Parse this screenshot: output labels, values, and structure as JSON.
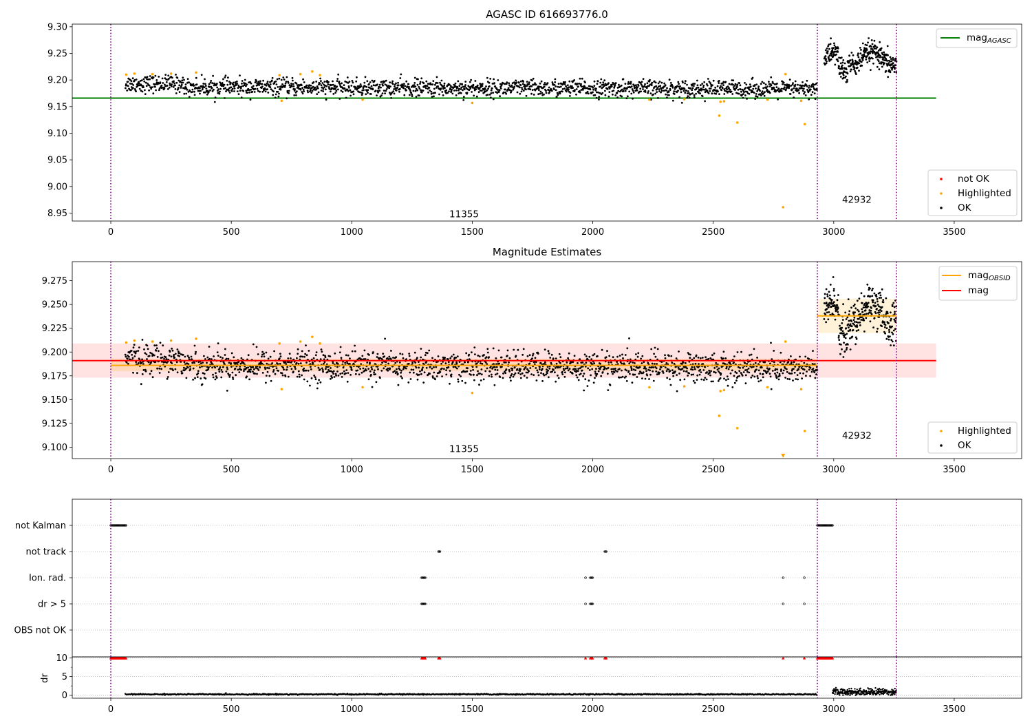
{
  "chart_data": [
    {
      "type": "scatter",
      "title": "AGASC ID 616693776.0",
      "xlim": [
        -160,
        3780
      ],
      "ylim": [
        8.935,
        9.305
      ],
      "x_ticks": [
        0,
        500,
        1000,
        1500,
        2000,
        2500,
        3000,
        3500
      ],
      "y_ticks": [
        8.95,
        9.0,
        9.05,
        9.1,
        9.15,
        9.2,
        9.25,
        9.3
      ],
      "y_tick_labels": [
        "8.95",
        "9.00",
        "9.05",
        "9.10",
        "9.15",
        "9.20",
        "9.25",
        "9.30"
      ],
      "grid": false,
      "vlines": [
        0,
        2932,
        3260
      ],
      "vline_color": "#800080",
      "obs_labels": [
        {
          "text": "11355",
          "x": 1466,
          "y": 8.942
        },
        {
          "text": "42932",
          "x": 3096,
          "y": 8.969
        }
      ],
      "hlines": [
        {
          "name": "mag",
          "sub": "AGASC",
          "y": 9.166,
          "x0": -160,
          "x1": 3425,
          "color": "#008000"
        }
      ],
      "segments": [
        {
          "x0": 60,
          "x1": 2932,
          "mean": 9.187,
          "spread": 0.008,
          "tilt": -0.004,
          "count": 1800,
          "status": "OK",
          "color": "#000000"
        },
        {
          "x0": 2960,
          "x1": 3260,
          "mean": 9.24,
          "spread": 0.011,
          "tilt": 0.0,
          "count": 340,
          "status": "OK",
          "color": "#000000"
        }
      ],
      "series": [
        {
          "name": "Highlighted",
          "color": "#FFA500",
          "points": [
            [
              64,
              9.21
            ],
            [
              98,
              9.212
            ],
            [
              173,
              9.211
            ],
            [
              250,
              9.212
            ],
            [
              354,
              9.214
            ],
            [
              700,
              9.209
            ],
            [
              709,
              9.161
            ],
            [
              787,
              9.211
            ],
            [
              836,
              9.216
            ],
            [
              868,
              9.209
            ],
            [
              1045,
              9.163
            ],
            [
              1500,
              9.157
            ],
            [
              2235,
              9.163
            ],
            [
              2380,
              9.164
            ],
            [
              2525,
              9.133
            ],
            [
              2530,
              9.159
            ],
            [
              2545,
              9.16
            ],
            [
              2600,
              9.12
            ],
            [
              2725,
              9.163
            ],
            [
              2790,
              8.961
            ],
            [
              2800,
              9.211
            ],
            [
              2865,
              9.161
            ],
            [
              2880,
              9.117
            ]
          ]
        }
      ],
      "legends": [
        {
          "position": "upper right",
          "entries": [
            {
              "label": "mag",
              "sub": "AGASC",
              "marker": "line",
              "color": "#008000"
            }
          ]
        },
        {
          "position": "lower right",
          "entries": [
            {
              "label": "not OK",
              "marker": "dot",
              "color": "#FF0000"
            },
            {
              "label": "Highlighted",
              "marker": "dot",
              "color": "#FFA500"
            },
            {
              "label": "OK",
              "marker": "dot",
              "color": "#000000"
            }
          ]
        }
      ]
    },
    {
      "type": "scatter",
      "title": "Magnitude Estimates",
      "xlim": [
        -160,
        3780
      ],
      "ylim": [
        9.088,
        9.295
      ],
      "x_ticks": [
        0,
        500,
        1000,
        1500,
        2000,
        2500,
        3000,
        3500
      ],
      "y_ticks": [
        9.1,
        9.125,
        9.15,
        9.175,
        9.2,
        9.225,
        9.25,
        9.275
      ],
      "y_tick_labels": [
        "9.100",
        "9.125",
        "9.150",
        "9.175",
        "9.200",
        "9.225",
        "9.250",
        "9.275"
      ],
      "grid": false,
      "vlines": [
        0,
        2932,
        3260
      ],
      "vline_color": "#800080",
      "obs_labels": [
        {
          "text": "11355",
          "x": 1466,
          "y": 9.095
        },
        {
          "text": "42932",
          "x": 3096,
          "y": 9.109
        }
      ],
      "bands": [
        {
          "y0": 9.173,
          "y1": 9.209,
          "x0": -160,
          "x1": 3425,
          "color": "#FF0000",
          "opacity": 0.11
        },
        {
          "y0": 9.18,
          "y1": 9.193,
          "x0": 0,
          "x1": 2932,
          "color": "#FFA500",
          "opacity": 0.18
        },
        {
          "y0": 9.22,
          "y1": 9.256,
          "x0": 2932,
          "x1": 3260,
          "color": "#FFA500",
          "opacity": 0.15
        }
      ],
      "hlines": [
        {
          "name": "mag",
          "y": 9.191,
          "x0": -160,
          "x1": 3425,
          "color": "#FF0000"
        },
        {
          "name": "mag",
          "sub": "OBSID",
          "y": 9.186,
          "x0": 0,
          "x1": 2932,
          "color": "#FFA500"
        },
        {
          "name": "mag",
          "sub": "OBSID",
          "y": 9.238,
          "x0": 2932,
          "x1": 3260,
          "color": "#FFA500"
        }
      ],
      "segments": [
        {
          "x0": 60,
          "x1": 2932,
          "mean": 9.187,
          "spread": 0.008,
          "tilt": -0.004,
          "count": 1800,
          "status": "OK",
          "color": "#000000"
        },
        {
          "x0": 2960,
          "x1": 3260,
          "mean": 9.24,
          "spread": 0.011,
          "tilt": 0.0,
          "count": 340,
          "status": "OK",
          "color": "#000000"
        }
      ],
      "series": [
        {
          "name": "Highlighted",
          "color": "#FFA500",
          "points": [
            [
              64,
              9.21
            ],
            [
              98,
              9.212
            ],
            [
              173,
              9.211
            ],
            [
              250,
              9.212
            ],
            [
              354,
              9.214
            ],
            [
              700,
              9.209
            ],
            [
              709,
              9.161
            ],
            [
              787,
              9.211
            ],
            [
              836,
              9.216
            ],
            [
              868,
              9.209
            ],
            [
              1045,
              9.163
            ],
            [
              1500,
              9.157
            ],
            [
              2235,
              9.163
            ],
            [
              2380,
              9.164
            ],
            [
              2525,
              9.133
            ],
            [
              2530,
              9.159
            ],
            [
              2545,
              9.16
            ],
            [
              2600,
              9.12
            ],
            [
              2725,
              9.163
            ],
            [
              2800,
              9.211
            ],
            [
              2865,
              9.161
            ],
            [
              2880,
              9.117
            ]
          ],
          "off_axis_below": [
            2790
          ]
        }
      ],
      "legends": [
        {
          "position": "upper right",
          "entries": [
            {
              "label": "mag",
              "sub": "OBSID",
              "marker": "line",
              "color": "#FFA500"
            },
            {
              "label": "mag",
              "marker": "line",
              "color": "#FF0000"
            }
          ]
        },
        {
          "position": "lower right",
          "entries": [
            {
              "label": "Highlighted",
              "marker": "dot",
              "color": "#FFA500"
            },
            {
              "label": "OK",
              "marker": "dot",
              "color": "#000000"
            }
          ]
        }
      ]
    },
    {
      "type": "scatter",
      "title": "",
      "xlim": [
        -160,
        3780
      ],
      "categories": [
        "not Kalman",
        "not track",
        "Ion. rad.",
        "dr > 5",
        "OBS not OK"
      ],
      "grid_color": "#b0b0b0",
      "vlines": [
        0,
        2932,
        3260
      ],
      "vline_color": "#800080",
      "flag_ranges": [
        {
          "category": "not Kalman",
          "ranges": [
            [
              0,
              64
            ],
            [
              2932,
              2995
            ]
          ]
        },
        {
          "category": "not track",
          "ranges": [
            [
              1360,
              1367
            ],
            [
              2050,
              2058
            ]
          ]
        },
        {
          "category": "Ion. rad.",
          "ranges": [
            [
              1290,
              1305
            ],
            [
              1970,
              1972
            ],
            [
              1990,
              2000
            ],
            [
              2790,
              2792
            ],
            [
              2878,
              2880
            ]
          ]
        },
        {
          "category": "dr > 5",
          "ranges": [
            [
              1290,
              1305
            ],
            [
              1970,
              1972
            ],
            [
              1990,
              2000
            ],
            [
              2790,
              2792
            ],
            [
              2878,
              2880
            ]
          ]
        },
        {
          "category": "OBS not OK",
          "ranges": []
        }
      ]
    },
    {
      "type": "scatter",
      "ylabel": "dr",
      "xlim": [
        -160,
        3780
      ],
      "ylim": [
        -0.8,
        10.3
      ],
      "x_ticks": [
        0,
        500,
        1000,
        1500,
        2000,
        2500,
        3000,
        3500
      ],
      "y_ticks": [
        0,
        5,
        10
      ],
      "y_tick_labels": [
        "0",
        "5",
        "10"
      ],
      "grid_values": [
        0,
        5,
        10
      ],
      "vlines": [
        0,
        2932,
        3260
      ],
      "vline_color": "#800080",
      "segments": [
        {
          "x0": 60,
          "x1": 2932,
          "mean": 0.25,
          "spread": 0.08,
          "count": 1100,
          "color": "#000000"
        },
        {
          "x0": 2995,
          "x1": 3260,
          "mean": 0.9,
          "spread": 0.45,
          "count": 260,
          "color": "#000000"
        }
      ],
      "clipped_markers": {
        "value": 10,
        "color": "#FF0000",
        "ranges": [
          [
            0,
            64
          ],
          [
            1290,
            1305
          ],
          [
            1360,
            1367
          ],
          [
            1970,
            1972
          ],
          [
            1990,
            2000
          ],
          [
            2050,
            2058
          ],
          [
            2790,
            2792
          ],
          [
            2878,
            2880
          ],
          [
            2932,
            2995
          ]
        ]
      }
    }
  ]
}
